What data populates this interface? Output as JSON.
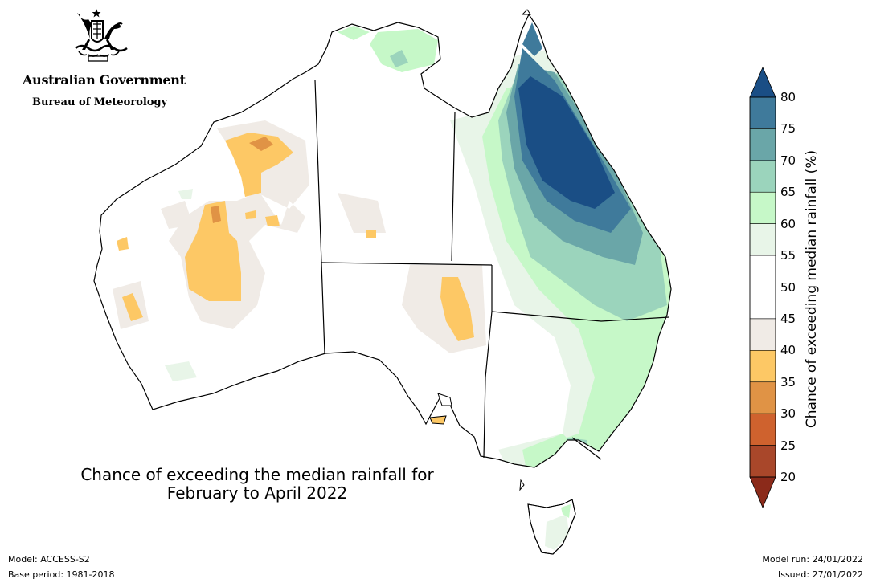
{
  "logo": {
    "government": "Australian Government",
    "agency": "Bureau of Meteorology",
    "emblem_icon": "coat-of-arms-icon"
  },
  "map": {
    "title_line1": "Chance of exceeding the median rainfall for",
    "title_line2": "February to April 2022",
    "region": "Australia",
    "colors": {
      "c20_25": "#a9472a",
      "c25_30": "#cf622e",
      "c30_35": "#e09345",
      "c35_40": "#fdc865",
      "c40_45": "#f0ebe6",
      "c45_55": "#ffffff",
      "c55_60": "#e8f5e8",
      "c60_65": "#c6f8c8",
      "c65_70": "#9bd4bc",
      "c70_75": "#6aa6a8",
      "c75_80": "#3f7a9b",
      "c80": "#1a4e85",
      "outline": "#000000"
    }
  },
  "colorbar": {
    "label": "Chance of exceeding median rainfall (%)",
    "ticks": [
      "80",
      "75",
      "70",
      "65",
      "60",
      "55",
      "50",
      "45",
      "40",
      "35",
      "30",
      "25",
      "20"
    ],
    "bands": [
      {
        "range": "80+",
        "color": "#1a4e85"
      },
      {
        "range": "75-80",
        "color": "#3f7a9b"
      },
      {
        "range": "70-75",
        "color": "#6aa6a8"
      },
      {
        "range": "65-70",
        "color": "#9bd4bc"
      },
      {
        "range": "60-65",
        "color": "#c6f8c8"
      },
      {
        "range": "55-60",
        "color": "#e8f5e8"
      },
      {
        "range": "50-55",
        "color": "#ffffff"
      },
      {
        "range": "45-50",
        "color": "#ffffff"
      },
      {
        "range": "40-45",
        "color": "#f0ebe6"
      },
      {
        "range": "35-40",
        "color": "#fdc865"
      },
      {
        "range": "30-35",
        "color": "#e09345"
      },
      {
        "range": "25-30",
        "color": "#cf622e"
      },
      {
        "range": "20-25",
        "color": "#a9472a"
      },
      {
        "range": "<20",
        "color": "#8b2a1a"
      }
    ]
  },
  "footer": {
    "model": "Model: ACCESS-S2",
    "base_period": "Base period: 1981-2018",
    "model_run": "Model run: 24/01/2022",
    "issued": "Issued: 27/01/2022"
  }
}
